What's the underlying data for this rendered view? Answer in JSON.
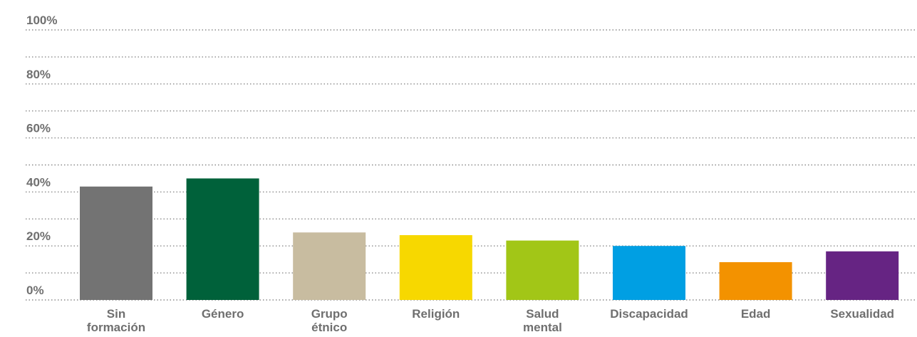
{
  "chart_data": {
    "type": "bar",
    "title": "",
    "xlabel": "",
    "ylabel": "",
    "ylim": [
      0,
      100
    ],
    "y_ticks": [
      "0%",
      "20%",
      "40%",
      "60%",
      "80%",
      "100%"
    ],
    "grid": true,
    "categories": [
      [
        "Sin",
        "formación"
      ],
      [
        "Género"
      ],
      [
        "Grupo",
        "étnico"
      ],
      [
        "Religión"
      ],
      [
        "Salud",
        "mental"
      ],
      [
        "Discapacidad"
      ],
      [
        "Edad"
      ],
      [
        "Sexualidad"
      ]
    ],
    "values": [
      42,
      45,
      25,
      24,
      22,
      20,
      14,
      18
    ],
    "colors": [
      "#737373",
      "#00613a",
      "#c8bca0",
      "#f7d800",
      "#a2c617",
      "#009fe3",
      "#f39200",
      "#662483"
    ]
  }
}
